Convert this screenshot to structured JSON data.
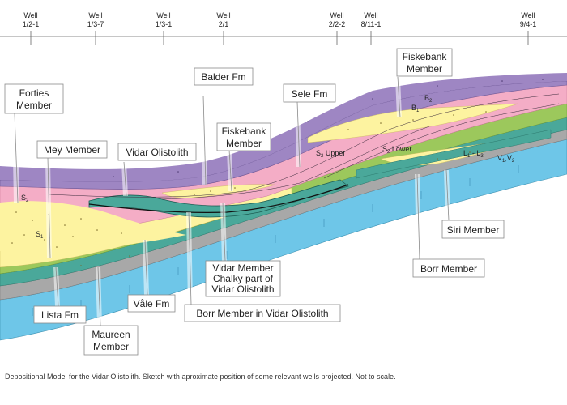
{
  "wells": [
    {
      "line1": "Well",
      "line2": "1/2-1"
    },
    {
      "line1": "Well",
      "line2": "1/3-7"
    },
    {
      "line1": "Well",
      "line2": "1/3-1"
    },
    {
      "line1": "Well",
      "line2": "2/1"
    },
    {
      "line1": "Well",
      "line2": "2/2-2"
    },
    {
      "line1": "Well",
      "line2": "8/11-1"
    },
    {
      "line1": "Well",
      "line2": "9/4-1"
    }
  ],
  "labels": {
    "forties": [
      "Forties",
      "Member"
    ],
    "mey": "Mey Member",
    "vidar_olistolith": "Vidar Olistolith",
    "balder": "Balder Fm",
    "fiskebank_left": [
      "Fiskebank",
      "Member"
    ],
    "sele": "Sele Fm",
    "fiskebank_right": [
      "Fiskebank",
      "Member"
    ],
    "siri": "Siri Member",
    "borr": "Borr Member",
    "vidar_member": [
      "Vidar Member",
      "Chalky part of",
      "Vidar Olistolith"
    ],
    "borr_in_vidar": "Borr Member in Vidar Olistolith",
    "vale": "Våle Fm",
    "lista": "Lista Fm",
    "maureen": [
      "Maureen",
      "Member"
    ]
  },
  "inline_labels": {
    "s2": "S",
    "s2_sub": "2",
    "s1": "S",
    "s1_sub": "1",
    "b2": "B",
    "b2_sub": "2",
    "b1": "B",
    "b1_sub": "1",
    "s2_upper_main": "S",
    "s2_upper_sub": "2",
    "s2_upper_word": " Upper",
    "s2_lower_main": "S",
    "s2_lower_sub": "2",
    "s2_lower_word": " Lower",
    "l_main": "L",
    "l_sub1": "1",
    "l_dash": " - L",
    "l_sub3": "3",
    "v_main": "V",
    "v_sub1": "1",
    "v_comma": ",V",
    "v_sub2": "2"
  },
  "colors": {
    "balder_purple": "#9e86c3",
    "sele_pink": "#f4adc6",
    "sand_yellow": "#fdf3a0",
    "lista_green": "#9cc85c",
    "teal": "#4aa89a",
    "chalk_blue": "#6ec6e8",
    "grey": "#a8a8a8"
  },
  "caption": "Depositional Model for the Vidar Olistolith. Sketch with aproximate position of some relevant wells projected. Not to scale."
}
